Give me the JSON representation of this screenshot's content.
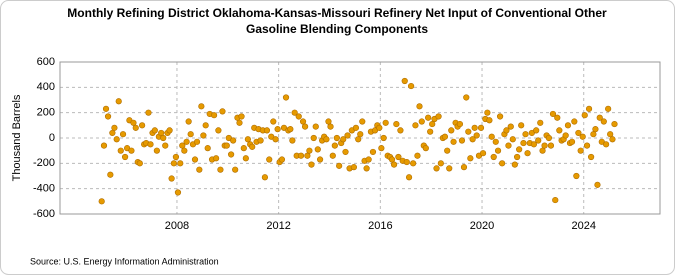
{
  "chart_data": {
    "type": "scatter",
    "title": [
      "Monthly Refining District Oklahoma-Kansas-Missouri Refinery Net Input of Conventional Other",
      "Gasoline Blending Components"
    ],
    "y_label": "Thousand Barrels",
    "source": "Source: U.S. Energy Information Administration",
    "xlim": [
      2003.4,
      2027.0
    ],
    "xticks": [
      2008,
      2012,
      2016,
      2020,
      2024
    ],
    "ylim": [
      -600,
      600
    ],
    "yticks": [
      -600,
      -400,
      -200,
      0,
      200,
      400,
      600
    ],
    "grid": true,
    "series": [
      {
        "name": "Net Input",
        "color": "#e69a00",
        "x": [
          2005.04,
          2005.13,
          2005.21,
          2005.29,
          2005.38,
          2005.46,
          2005.54,
          2005.63,
          2005.71,
          2005.79,
          2005.88,
          2005.96,
          2006.04,
          2006.13,
          2006.21,
          2006.29,
          2006.38,
          2006.46,
          2006.54,
          2006.63,
          2006.71,
          2006.79,
          2006.88,
          2006.96,
          2007.04,
          2007.13,
          2007.21,
          2007.29,
          2007.38,
          2007.46,
          2007.54,
          2007.63,
          2007.71,
          2007.79,
          2007.88,
          2007.96,
          2008.04,
          2008.13,
          2008.21,
          2008.29,
          2008.38,
          2008.46,
          2008.54,
          2008.63,
          2008.71,
          2008.79,
          2008.88,
          2008.96,
          2009.04,
          2009.13,
          2009.21,
          2009.29,
          2009.38,
          2009.46,
          2009.54,
          2009.63,
          2009.71,
          2009.79,
          2009.88,
          2009.96,
          2010.04,
          2010.13,
          2010.21,
          2010.29,
          2010.38,
          2010.46,
          2010.54,
          2010.63,
          2010.71,
          2010.79,
          2010.88,
          2010.96,
          2011.04,
          2011.13,
          2011.21,
          2011.29,
          2011.38,
          2011.46,
          2011.54,
          2011.63,
          2011.71,
          2011.79,
          2011.88,
          2011.96,
          2012.04,
          2012.13,
          2012.21,
          2012.29,
          2012.38,
          2012.46,
          2012.54,
          2012.63,
          2012.71,
          2012.79,
          2012.88,
          2012.96,
          2013.04,
          2013.13,
          2013.21,
          2013.29,
          2013.38,
          2013.46,
          2013.54,
          2013.63,
          2013.71,
          2013.79,
          2013.88,
          2013.96,
          2014.04,
          2014.13,
          2014.21,
          2014.29,
          2014.38,
          2014.46,
          2014.54,
          2014.63,
          2014.71,
          2014.79,
          2014.88,
          2014.96,
          2015.04,
          2015.13,
          2015.21,
          2015.29,
          2015.38,
          2015.46,
          2015.54,
          2015.63,
          2015.71,
          2015.79,
          2015.88,
          2015.96,
          2016.04,
          2016.13,
          2016.21,
          2016.29,
          2016.38,
          2016.46,
          2016.54,
          2016.63,
          2016.71,
          2016.79,
          2016.88,
          2016.96,
          2017.04,
          2017.13,
          2017.21,
          2017.29,
          2017.38,
          2017.46,
          2017.54,
          2017.63,
          2017.71,
          2017.79,
          2017.88,
          2017.96,
          2018.04,
          2018.13,
          2018.21,
          2018.29,
          2018.38,
          2018.46,
          2018.54,
          2018.63,
          2018.71,
          2018.79,
          2018.88,
          2018.96,
          2019.04,
          2019.13,
          2019.21,
          2019.29,
          2019.38,
          2019.46,
          2019.54,
          2019.63,
          2019.71,
          2019.79,
          2019.88,
          2019.96,
          2020.04,
          2020.13,
          2020.21,
          2020.29,
          2020.38,
          2020.46,
          2020.54,
          2020.63,
          2020.71,
          2020.79,
          2020.88,
          2020.96,
          2021.04,
          2021.13,
          2021.21,
          2021.29,
          2021.38,
          2021.46,
          2021.54,
          2021.63,
          2021.71,
          2021.79,
          2021.88,
          2021.96,
          2022.04,
          2022.13,
          2022.21,
          2022.29,
          2022.38,
          2022.46,
          2022.54,
          2022.63,
          2022.71,
          2022.79,
          2022.88,
          2022.96,
          2023.04,
          2023.13,
          2023.21,
          2023.29,
          2023.38,
          2023.46,
          2023.54,
          2023.63,
          2023.71,
          2023.79,
          2023.88,
          2023.96,
          2024.04,
          2024.13,
          2024.21,
          2024.29,
          2024.38,
          2024.46,
          2024.54,
          2024.63,
          2024.71,
          2024.79,
          2024.88,
          2024.96,
          2025.04,
          2025.13,
          2025.21
        ],
        "values": [
          -500,
          -60,
          230,
          170,
          -290,
          40,
          80,
          -10,
          290,
          -100,
          30,
          -150,
          -80,
          140,
          -100,
          120,
          80,
          -190,
          -200,
          100,
          -50,
          -40,
          200,
          -50,
          40,
          60,
          -100,
          10,
          40,
          0,
          -60,
          40,
          60,
          -320,
          -200,
          -150,
          -430,
          -200,
          -60,
          -100,
          -30,
          130,
          30,
          -50,
          -170,
          -30,
          -250,
          250,
          20,
          100,
          -80,
          190,
          -170,
          180,
          -160,
          60,
          -250,
          210,
          -60,
          -60,
          0,
          -130,
          -20,
          -250,
          160,
          120,
          170,
          -80,
          -160,
          -10,
          -50,
          -70,
          80,
          -30,
          70,
          -20,
          60,
          -310,
          60,
          -170,
          10,
          130,
          -10,
          70,
          -190,
          -170,
          80,
          320,
          60,
          70,
          -20,
          200,
          -140,
          170,
          -140,
          130,
          90,
          -140,
          -100,
          -210,
          0,
          90,
          -90,
          -170,
          -20,
          10,
          -10,
          130,
          90,
          -140,
          -60,
          0,
          -220,
          -40,
          -10,
          -110,
          20,
          -240,
          60,
          -230,
          80,
          -10,
          30,
          130,
          -180,
          -240,
          -170,
          50,
          -110,
          60,
          100,
          80,
          -80,
          0,
          120,
          -140,
          -150,
          -170,
          -210,
          110,
          -150,
          60,
          -180,
          450,
          -190,
          -310,
          410,
          -200,
          100,
          -140,
          250,
          130,
          -60,
          -80,
          160,
          50,
          110,
          150,
          -240,
          170,
          -200,
          0,
          10,
          -100,
          -240,
          60,
          -30,
          120,
          90,
          110,
          -20,
          -230,
          320,
          50,
          -160,
          -10,
          80,
          20,
          -140,
          80,
          -120,
          150,
          200,
          140,
          10,
          -150,
          -30,
          -100,
          170,
          -200,
          30,
          60,
          -60,
          90,
          -10,
          -210,
          -150,
          -90,
          100,
          -40,
          30,
          -120,
          -40,
          40,
          -50,
          60,
          -20,
          120,
          -100,
          -60,
          20,
          0,
          -60,
          190,
          -490,
          160,
          60,
          -20,
          -10,
          20,
          100,
          -40,
          -30,
          130,
          -300,
          40,
          -100,
          10,
          180,
          -60,
          230,
          -150,
          30,
          70,
          -370,
          160,
          -30,
          130,
          -50,
          230,
          30,
          -10,
          110
        ]
      }
    ]
  }
}
